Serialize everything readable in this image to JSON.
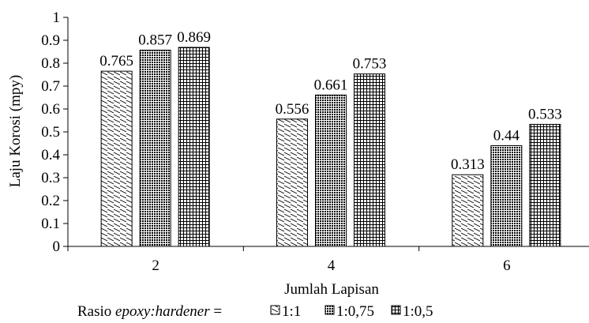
{
  "chart_data": {
    "type": "bar",
    "categories": [
      "2",
      "4",
      "6"
    ],
    "series": [
      {
        "name": "1:1",
        "pattern": "diagonal",
        "values": [
          0.765,
          0.556,
          0.313
        ]
      },
      {
        "name": "1:0,75",
        "pattern": "dots",
        "values": [
          0.857,
          0.661,
          0.44
        ]
      },
      {
        "name": "1:0,5",
        "pattern": "grid",
        "values": [
          0.869,
          0.753,
          0.533
        ]
      }
    ],
    "data_labels": [
      [
        "0.765",
        "0.556",
        "0.313"
      ],
      [
        "0.857",
        "0.661",
        "0.44"
      ],
      [
        "0.869",
        "0.753",
        "0.533"
      ]
    ],
    "xlabel": "Jumlah Lapisan",
    "ylabel": "Laju Korosi (mpy)",
    "ylim": [
      0,
      1
    ],
    "yticks": [
      "0",
      "0.1",
      "0.2",
      "0.3",
      "0.4",
      "0.5",
      "0.6",
      "0.7",
      "0.8",
      "0.9",
      "1"
    ],
    "legend": {
      "prefix": "Rasio ",
      "prefix_italic": "epoxy:hardener",
      "prefix_suffix": " =",
      "placement": "bottom"
    },
    "grid": false
  }
}
